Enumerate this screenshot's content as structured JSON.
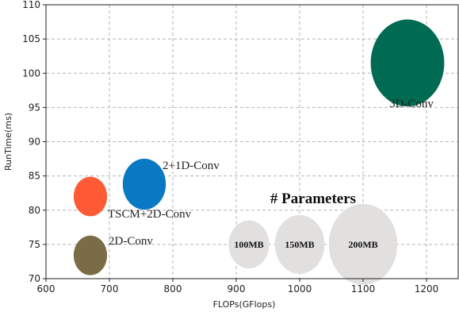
{
  "chart_data": {
    "type": "scatter",
    "title": "",
    "xlabel": "FLOPs(GFlops)",
    "ylabel": "RunTime(ms)",
    "xlim": [
      600,
      1250
    ],
    "ylim": [
      70,
      110
    ],
    "xticks": [
      600,
      700,
      800,
      900,
      1000,
      1100,
      1200
    ],
    "yticks": [
      70,
      75,
      80,
      85,
      90,
      95,
      100,
      105,
      110
    ],
    "grid": true,
    "series": [
      {
        "name": "3D-Conv",
        "x": 1170,
        "y": 101.5,
        "size": 1.45,
        "color": "#006b52"
      },
      {
        "name": "2+1D-Conv",
        "x": 755,
        "y": 83.8,
        "size": 0.85,
        "color": "#0a79c4"
      },
      {
        "name": "TSCM+2D-Conv",
        "x": 670,
        "y": 82.0,
        "size": 0.66,
        "color": "#ff5a36"
      },
      {
        "name": "2D-Conv",
        "x": 670,
        "y": 73.4,
        "size": 0.66,
        "color": "#7a6c46"
      }
    ],
    "size_legend": {
      "title": "# Parameters",
      "color": "#e2dfdf",
      "items": [
        {
          "label": "100MB",
          "x": 920,
          "y": 75,
          "size": 0.8
        },
        {
          "label": "150MB",
          "x": 1000,
          "y": 75,
          "size": 0.98
        },
        {
          "label": "200MB",
          "x": 1100,
          "y": 75,
          "size": 1.35
        }
      ]
    }
  }
}
